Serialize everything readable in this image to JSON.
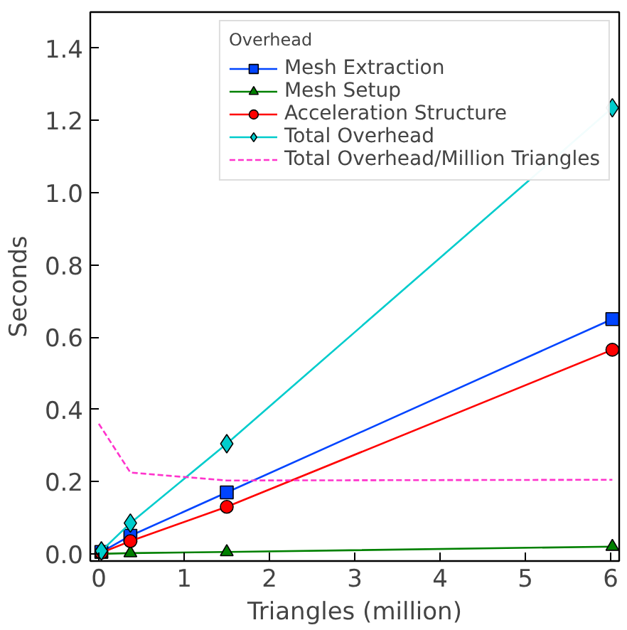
{
  "chart_data": {
    "type": "line",
    "xlabel": "Triangles (million)",
    "ylabel": "Seconds",
    "legend_title": "Overhead",
    "legend": "top right",
    "grid": false,
    "x": [
      0.03,
      0.37,
      1.5,
      6.02
    ],
    "xlim": [
      -0.1,
      6.1
    ],
    "xticks": [
      0,
      1,
      2,
      3,
      4,
      5,
      6
    ],
    "ylim": [
      -0.02,
      1.5
    ],
    "yticks": [
      {
        "value": 0,
        "label": "0.0"
      },
      0.2,
      0.4,
      0.6,
      0.8,
      {
        "value": 1,
        "label": "1.0"
      },
      1.2,
      1.4
    ],
    "series": [
      {
        "name": "Mesh Extraction",
        "color": "#0044ff",
        "marker": "square",
        "values": [
          0.005,
          0.05,
          0.17,
          0.65
        ]
      },
      {
        "name": "Mesh Setup",
        "color": "#008000",
        "marker": "triangle",
        "values": [
          0.0,
          0.002,
          0.005,
          0.02
        ]
      },
      {
        "name": "Acceleration Structure",
        "color": "#ff0000",
        "marker": "circle",
        "values": [
          0.003,
          0.035,
          0.13,
          0.565
        ]
      },
      {
        "name": "Total Overhead",
        "color": "#00cccc",
        "marker": "diamond",
        "values": [
          0.008,
          0.085,
          0.305,
          1.235
        ]
      },
      {
        "name": "Total Overhead/Million Triangles",
        "color": "#ff33cc",
        "marker": "none",
        "line_style": "dashed",
        "x": [
          0.0,
          0.37,
          1.5,
          6.02
        ],
        "values": [
          0.36,
          0.225,
          0.203,
          0.205
        ]
      }
    ]
  }
}
